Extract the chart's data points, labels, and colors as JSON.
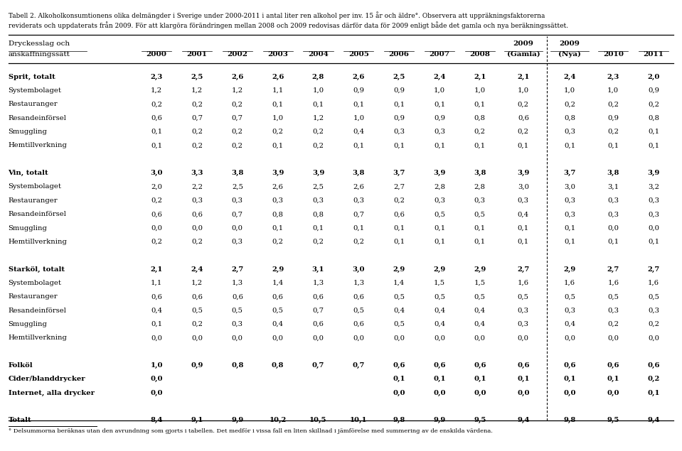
{
  "title_line1": "Tabell 2. Alkoholkonsumtionens olika delmängder i Sverige under 2000-2011 i antal liter ren alkohol per inv. 15 år och äldre°. Observera att uppräkningsfaktorerna",
  "title_line2": "reviderats och uppdaterats från 2009. För att klargöra förändringen mellan 2008 och 2009 redovisas därför data för 2009 enligt både det gamla och nya beräkningssättet.",
  "footnote": "° Delsummorna beräknas utan den avrundning som gjorts i tabellen. Det medför i vissa fall en liten skillnad i jämförelse med summering av de enskilda värdena.",
  "header_row1_label": "Dryckesslag och",
  "header_row2_label": "anskaffningssätt",
  "col_headers_line1": [
    "2000",
    "2001",
    "2002",
    "2003",
    "2004",
    "2005",
    "2006",
    "2007",
    "2008",
    "2009",
    "2009",
    "2010",
    "2011"
  ],
  "col_headers_line2": [
    "",
    "",
    "",
    "",
    "",
    "",
    "",
    "",
    "",
    "(Gamla)",
    "(Nya)",
    "",
    ""
  ],
  "rows": [
    {
      "label": "Sprit, totalt",
      "bold": true,
      "values": [
        "2,3",
        "2,5",
        "2,6",
        "2,6",
        "2,8",
        "2,6",
        "2,5",
        "2,4",
        "2,1",
        "2,1",
        "2,4",
        "2,3",
        "2,0"
      ]
    },
    {
      "label": "Systembolaget",
      "bold": false,
      "values": [
        "1,2",
        "1,2",
        "1,2",
        "1,1",
        "1,0",
        "0,9",
        "0,9",
        "1,0",
        "1,0",
        "1,0",
        "1,0",
        "1,0",
        "0,9"
      ]
    },
    {
      "label": "Restauranger",
      "bold": false,
      "values": [
        "0,2",
        "0,2",
        "0,2",
        "0,1",
        "0,1",
        "0,1",
        "0,1",
        "0,1",
        "0,1",
        "0,2",
        "0,2",
        "0,2",
        "0,2"
      ]
    },
    {
      "label": "Resandeinförsel",
      "bold": false,
      "values": [
        "0,6",
        "0,7",
        "0,7",
        "1,0",
        "1,2",
        "1,0",
        "0,9",
        "0,9",
        "0,8",
        "0,6",
        "0,8",
        "0,9",
        "0,8"
      ]
    },
    {
      "label": "Smuggling",
      "bold": false,
      "values": [
        "0,1",
        "0,2",
        "0,2",
        "0,2",
        "0,2",
        "0,4",
        "0,3",
        "0,3",
        "0,2",
        "0,2",
        "0,3",
        "0,2",
        "0,1"
      ]
    },
    {
      "label": "Hemtillverkning",
      "bold": false,
      "values": [
        "0,1",
        "0,2",
        "0,2",
        "0,1",
        "0,2",
        "0,1",
        "0,1",
        "0,1",
        "0,1",
        "0,1",
        "0,1",
        "0,1",
        "0,1"
      ]
    },
    {
      "label": "",
      "bold": false,
      "values": [
        "",
        "",
        "",
        "",
        "",
        "",
        "",
        "",
        "",
        "",
        "",
        "",
        ""
      ]
    },
    {
      "label": "Vin, totalt",
      "bold": true,
      "values": [
        "3,0",
        "3,3",
        "3,8",
        "3,9",
        "3,9",
        "3,8",
        "3,7",
        "3,9",
        "3,8",
        "3,9",
        "3,7",
        "3,8",
        "3,9"
      ]
    },
    {
      "label": "Systembolaget",
      "bold": false,
      "values": [
        "2,0",
        "2,2",
        "2,5",
        "2,6",
        "2,5",
        "2,6",
        "2,7",
        "2,8",
        "2,8",
        "3,0",
        "3,0",
        "3,1",
        "3,2"
      ]
    },
    {
      "label": "Restauranger",
      "bold": false,
      "values": [
        "0,2",
        "0,3",
        "0,3",
        "0,3",
        "0,3",
        "0,3",
        "0,2",
        "0,3",
        "0,3",
        "0,3",
        "0,3",
        "0,3",
        "0,3"
      ]
    },
    {
      "label": "Resandeinförsel",
      "bold": false,
      "values": [
        "0,6",
        "0,6",
        "0,7",
        "0,8",
        "0,8",
        "0,7",
        "0,6",
        "0,5",
        "0,5",
        "0,4",
        "0,3",
        "0,3",
        "0,3"
      ]
    },
    {
      "label": "Smuggling",
      "bold": false,
      "values": [
        "0,0",
        "0,0",
        "0,0",
        "0,1",
        "0,1",
        "0,1",
        "0,1",
        "0,1",
        "0,1",
        "0,1",
        "0,1",
        "0,0",
        "0,0"
      ]
    },
    {
      "label": "Hemtillverkning",
      "bold": false,
      "values": [
        "0,2",
        "0,2",
        "0,3",
        "0,2",
        "0,2",
        "0,2",
        "0,1",
        "0,1",
        "0,1",
        "0,1",
        "0,1",
        "0,1",
        "0,1"
      ]
    },
    {
      "label": "",
      "bold": false,
      "values": [
        "",
        "",
        "",
        "",
        "",
        "",
        "",
        "",
        "",
        "",
        "",
        "",
        ""
      ]
    },
    {
      "label": "Starköl, totalt",
      "bold": true,
      "values": [
        "2,1",
        "2,4",
        "2,7",
        "2,9",
        "3,1",
        "3,0",
        "2,9",
        "2,9",
        "2,9",
        "2,7",
        "2,9",
        "2,7",
        "2,7"
      ]
    },
    {
      "label": "Systembolaget",
      "bold": false,
      "values": [
        "1,1",
        "1,2",
        "1,3",
        "1,4",
        "1,3",
        "1,3",
        "1,4",
        "1,5",
        "1,5",
        "1,6",
        "1,6",
        "1,6",
        "1,6"
      ]
    },
    {
      "label": "Restauranger",
      "bold": false,
      "values": [
        "0,6",
        "0,6",
        "0,6",
        "0,6",
        "0,6",
        "0,6",
        "0,5",
        "0,5",
        "0,5",
        "0,5",
        "0,5",
        "0,5",
        "0,5"
      ]
    },
    {
      "label": "Resandeinförsel",
      "bold": false,
      "values": [
        "0,4",
        "0,5",
        "0,5",
        "0,5",
        "0,7",
        "0,5",
        "0,4",
        "0,4",
        "0,4",
        "0,3",
        "0,3",
        "0,3",
        "0,3"
      ]
    },
    {
      "label": "Smuggling",
      "bold": false,
      "values": [
        "0,1",
        "0,2",
        "0,3",
        "0,4",
        "0,6",
        "0,6",
        "0,5",
        "0,4",
        "0,4",
        "0,3",
        "0,4",
        "0,2",
        "0,2"
      ]
    },
    {
      "label": "Hemtillverkning",
      "bold": false,
      "values": [
        "0,0",
        "0,0",
        "0,0",
        "0,0",
        "0,0",
        "0,0",
        "0,0",
        "0,0",
        "0,0",
        "0,0",
        "0,0",
        "0,0",
        "0,0"
      ]
    },
    {
      "label": "",
      "bold": false,
      "values": [
        "",
        "",
        "",
        "",
        "",
        "",
        "",
        "",
        "",
        "",
        "",
        "",
        ""
      ]
    },
    {
      "label": "Folköl",
      "bold": true,
      "values": [
        "1,0",
        "0,9",
        "0,8",
        "0,8",
        "0,7",
        "0,7",
        "0,6",
        "0,6",
        "0,6",
        "0,6",
        "0,6",
        "0,6",
        "0,6"
      ]
    },
    {
      "label": "Cider/blanddrycker",
      "bold": true,
      "values": [
        "0,0",
        "",
        "",
        "",
        "",
        "",
        "0,1",
        "0,1",
        "0,1",
        "0,1",
        "0,1",
        "0,1",
        "0,2"
      ]
    },
    {
      "label": "Internet, alla drycker",
      "bold": true,
      "values": [
        "0,0",
        "",
        "",
        "",
        "",
        "",
        "0,0",
        "0,0",
        "0,0",
        "0,0",
        "0,0",
        "0,0",
        "0,1"
      ]
    },
    {
      "label": "",
      "bold": false,
      "values": [
        "",
        "",
        "",
        "",
        "",
        "",
        "",
        "",
        "",
        "",
        "",
        "",
        ""
      ]
    },
    {
      "label": "Totalt",
      "bold": true,
      "values": [
        "8,4",
        "9,1",
        "9,9",
        "10,2",
        "10,5",
        "10,1",
        "9,8",
        "9,9",
        "9,5",
        "9,4",
        "9,8",
        "9,5",
        "9,4"
      ]
    }
  ]
}
